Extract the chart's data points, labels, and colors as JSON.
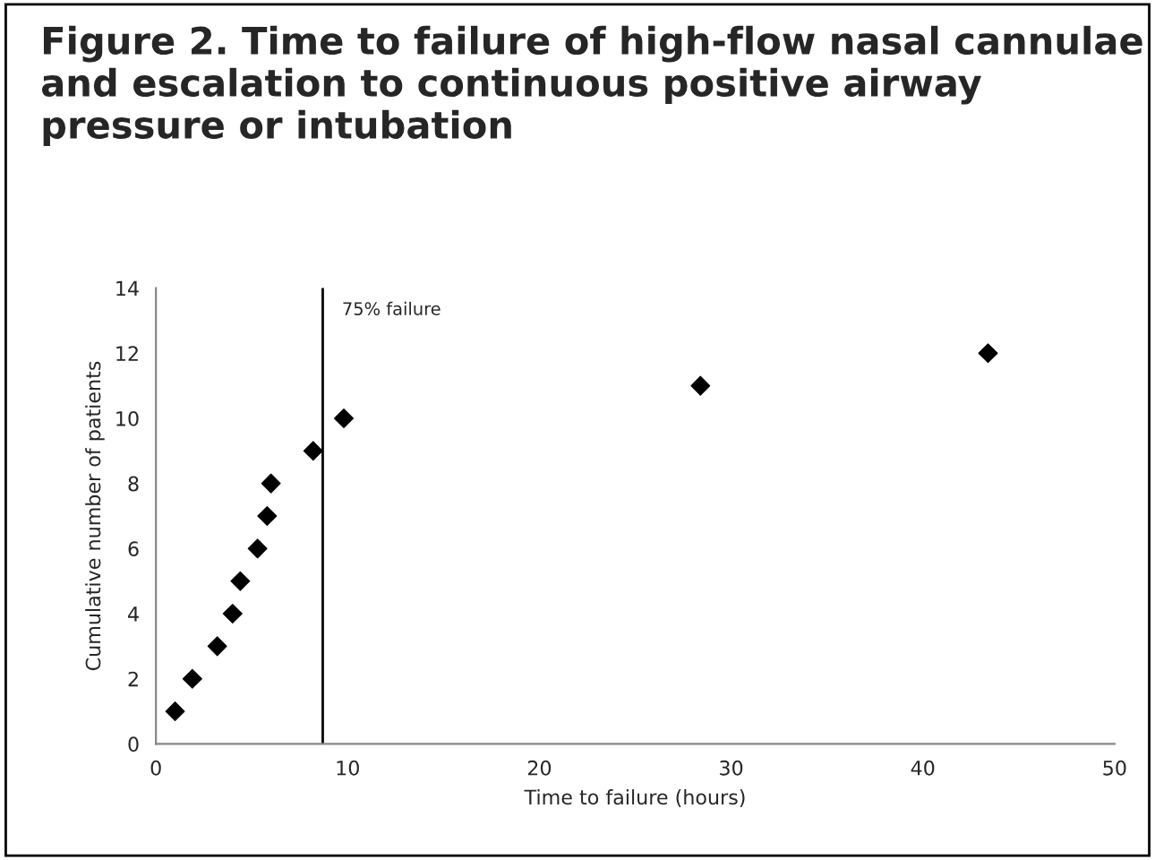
{
  "chart_data": {
    "type": "scatter",
    "title": "Figure 2. Time to failure of high-flow nasal cannulae and escalation to continuous positive airway pressure or intubation",
    "xlabel": "Time to failure (hours)",
    "ylabel": "Cumulative number of patients",
    "x": [
      1.0,
      1.9,
      3.2,
      4.0,
      4.4,
      5.3,
      5.8,
      6.0,
      8.2,
      9.8,
      28.4,
      43.4
    ],
    "series": [
      {
        "color": "#000000",
        "values": [
          1,
          2,
          3,
          4,
          5,
          6,
          7,
          8,
          9,
          10,
          11,
          12
        ]
      }
    ],
    "marker": "diamond",
    "xlim": [
      0,
      50
    ],
    "xticks": [
      0,
      10,
      20,
      30,
      40,
      50
    ],
    "ylim": [
      0,
      14
    ],
    "yticks": [
      0,
      2,
      4,
      6,
      8,
      10,
      12,
      14
    ],
    "grid": false,
    "legend": false,
    "ref_lines": [
      {
        "axis": "x",
        "value": 8.7,
        "label": "75% failure",
        "color": "#000000"
      }
    ]
  }
}
